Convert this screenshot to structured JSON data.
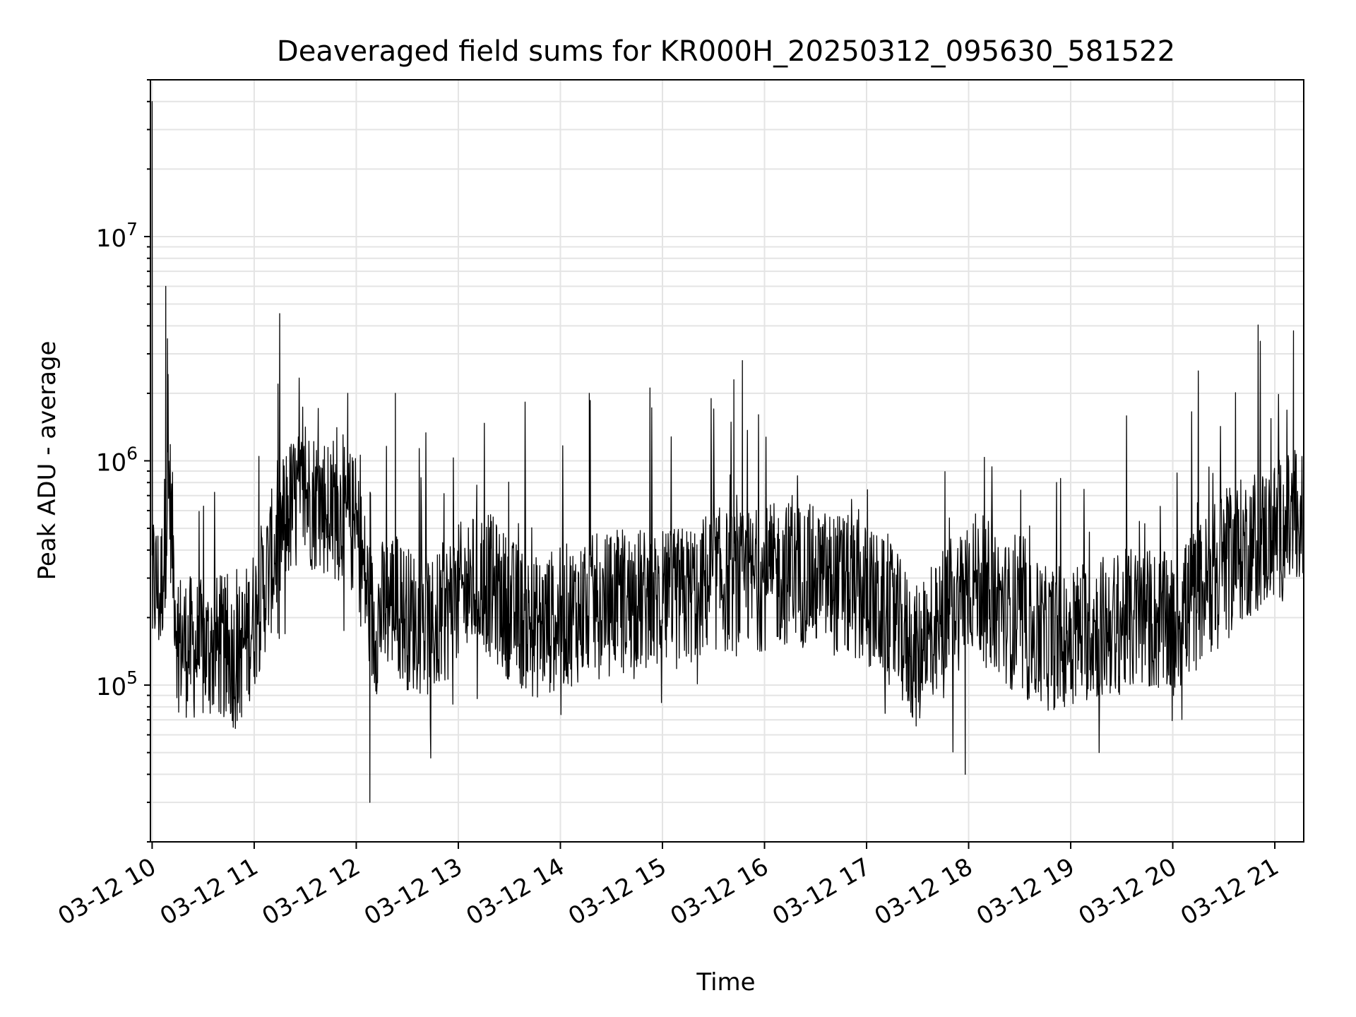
{
  "chart_data": {
    "type": "line",
    "title": "Deaveraged field sums for KR000H_20250312_095630_581522",
    "xlabel": "Time",
    "ylabel": "Peak ADU - average",
    "yscale": "log",
    "ylim": [
      20000,
      50000000
    ],
    "xlim": [
      "2025-03-12 09:59",
      "2025-03-12 21:17"
    ],
    "grid": true,
    "x_ticks": [
      "03-12 10",
      "03-12 11",
      "03-12 12",
      "03-12 13",
      "03-12 14",
      "03-12 15",
      "03-12 16",
      "03-12 17",
      "03-12 18",
      "03-12 19",
      "03-12 20",
      "03-12 21"
    ],
    "y_ticks": [
      {
        "value": 100000,
        "base": "10",
        "exp": "5"
      },
      {
        "value": 1000000,
        "base": "10",
        "exp": "6"
      },
      {
        "value": 10000000,
        "base": "10",
        "exp": "7"
      }
    ],
    "line_color": "#000000",
    "series": [
      {
        "x": [
          "2025-03-12 10:00",
          "2025-03-12 10:05",
          "2025-03-12 10:10",
          "2025-03-12 10:15",
          "2025-03-12 10:20",
          "2025-03-12 10:30",
          "2025-03-12 10:40",
          "2025-03-12 10:50",
          "2025-03-12 11:00",
          "2025-03-12 11:10",
          "2025-03-12 11:20",
          "2025-03-12 11:30",
          "2025-03-12 11:40",
          "2025-03-12 11:50",
          "2025-03-12 12:00",
          "2025-03-12 12:10",
          "2025-03-12 12:20",
          "2025-03-12 12:30",
          "2025-03-12 12:45",
          "2025-03-12 13:00",
          "2025-03-12 13:15",
          "2025-03-12 13:30",
          "2025-03-12 13:45",
          "2025-03-12 14:00",
          "2025-03-12 14:15",
          "2025-03-12 14:30",
          "2025-03-12 14:45",
          "2025-03-12 15:00",
          "2025-03-12 15:15",
          "2025-03-12 15:30",
          "2025-03-12 15:45",
          "2025-03-12 16:00",
          "2025-03-12 16:15",
          "2025-03-12 16:30",
          "2025-03-12 16:45",
          "2025-03-12 17:00",
          "2025-03-12 17:15",
          "2025-03-12 17:30",
          "2025-03-12 17:45",
          "2025-03-12 18:00",
          "2025-03-12 18:15",
          "2025-03-12 18:30",
          "2025-03-12 18:45",
          "2025-03-12 19:00",
          "2025-03-12 19:15",
          "2025-03-12 19:30",
          "2025-03-12 19:45",
          "2025-03-12 20:00",
          "2025-03-12 20:15",
          "2025-03-12 20:30",
          "2025-03-12 20:45",
          "2025-03-12 21:00",
          "2025-03-12 21:10",
          "2025-03-12 21:17"
        ],
        "values": [
          300000,
          250000,
          800000,
          160000,
          150000,
          140000,
          150000,
          130000,
          200000,
          350000,
          600000,
          700000,
          650000,
          600000,
          500000,
          180000,
          250000,
          200000,
          180000,
          250000,
          300000,
          220000,
          180000,
          200000,
          220000,
          230000,
          240000,
          230000,
          250000,
          300000,
          280000,
          300000,
          320000,
          300000,
          280000,
          250000,
          200000,
          130000,
          180000,
          300000,
          250000,
          180000,
          160000,
          170000,
          180000,
          190000,
          200000,
          180000,
          250000,
          350000,
          420000,
          480000,
          520000,
          550000
        ]
      }
    ],
    "spikes": [
      {
        "x": "2025-03-12 10:00",
        "value": 40000000
      },
      {
        "x": "2025-03-12 10:08",
        "value": 6000000
      },
      {
        "x": "2025-03-12 10:09",
        "value": 3500000
      },
      {
        "x": "2025-03-12 11:14",
        "value": 2200000
      },
      {
        "x": "2025-03-12 11:55",
        "value": 2000000
      },
      {
        "x": "2025-03-12 12:08",
        "value": 30000
      },
      {
        "x": "2025-03-12 12:23",
        "value": 2000000
      },
      {
        "x": "2025-03-12 14:17",
        "value": 2000000
      },
      {
        "x": "2025-03-12 15:42",
        "value": 2300000
      },
      {
        "x": "2025-03-12 15:47",
        "value": 2800000
      },
      {
        "x": "2025-03-12 17:58",
        "value": 40000
      },
      {
        "x": "2025-03-12 21:11",
        "value": 3800000
      }
    ]
  }
}
